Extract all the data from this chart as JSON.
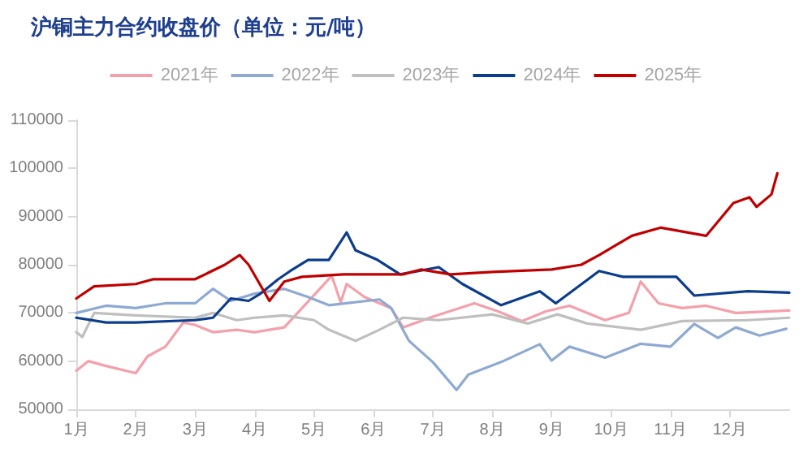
{
  "chart_data": {
    "type": "line",
    "title": "沪铜主力合约收盘价（单位：元/吨）",
    "xlim": [
      1,
      13
    ],
    "xticks": [
      {
        "value": 1,
        "label": "1月"
      },
      {
        "value": 2,
        "label": "2月"
      },
      {
        "value": 3,
        "label": "3月"
      },
      {
        "value": 4,
        "label": "4月"
      },
      {
        "value": 5,
        "label": "5月"
      },
      {
        "value": 6,
        "label": "6月"
      },
      {
        "value": 7,
        "label": "7月"
      },
      {
        "value": 8,
        "label": "8月"
      },
      {
        "value": 9,
        "label": "9月"
      },
      {
        "value": 10,
        "label": "10月"
      },
      {
        "value": 11,
        "label": "11月"
      },
      {
        "value": 12,
        "label": "12月"
      }
    ],
    "ylim": [
      50000,
      110000
    ],
    "yticks": [
      50000,
      60000,
      70000,
      80000,
      90000,
      100000,
      110000
    ],
    "grid": false,
    "legend": "top",
    "marker": "none",
    "line_style": "solid",
    "series": [
      {
        "name": "2021年",
        "color": "#f4a0aa",
        "x": [
          1,
          1.2,
          1.5,
          2,
          2.2,
          2.5,
          2.8,
          3,
          3.3,
          3.7,
          4,
          4.5,
          4.8,
          5.3,
          5.45,
          5.55,
          5.85,
          6.3,
          6.5,
          7,
          7.7,
          8.1,
          8.5,
          8.9,
          9.3,
          9.9,
          10.3,
          10.5,
          10.8,
          11.2,
          11.6,
          12.1,
          13
        ],
        "values": [
          58000,
          60000,
          59000,
          57500,
          61000,
          63000,
          68000,
          67500,
          66000,
          66500,
          66000,
          67000,
          71000,
          77700,
          72200,
          76000,
          73300,
          71000,
          67000,
          69200,
          72000,
          70300,
          68300,
          70300,
          71500,
          68500,
          70000,
          76500,
          72000,
          71000,
          71500,
          70000,
          70500
        ]
      },
      {
        "name": "2022年",
        "color": "#8ea9d2",
        "x": [
          1,
          1.5,
          2,
          2.5,
          3,
          3.3,
          3.6,
          4,
          4.5,
          4.9,
          5.25,
          6.1,
          6.3,
          6.6,
          7,
          7.4,
          7.6,
          8.15,
          8.8,
          9,
          9.3,
          9.9,
          10.5,
          11,
          11.4,
          11.8,
          12.1,
          12.5,
          12.95
        ],
        "values": [
          70000,
          71500,
          71000,
          72000,
          72000,
          75000,
          72500,
          74000,
          75000,
          73300,
          71600,
          72800,
          71000,
          64200,
          59800,
          54000,
          57200,
          59800,
          63500,
          60100,
          63000,
          60700,
          63600,
          63000,
          67700,
          64800,
          67000,
          65300,
          66700
        ]
      },
      {
        "name": "2023年",
        "color": "#bfbfbf",
        "x": [
          1,
          1.1,
          1.3,
          2,
          3,
          3.3,
          3.7,
          4,
          4.5,
          5,
          5.25,
          5.7,
          6.1,
          6.5,
          7.1,
          8,
          8.6,
          9.1,
          9.6,
          10.5,
          11.2,
          12.3,
          13
        ],
        "values": [
          66000,
          65000,
          70000,
          69500,
          69000,
          70000,
          68500,
          69000,
          69500,
          68500,
          66500,
          64200,
          66500,
          69000,
          68500,
          69700,
          67800,
          69700,
          67800,
          66500,
          68300,
          68500,
          69000
        ]
      },
      {
        "name": "2024年",
        "color": "#0b3d8c",
        "x": [
          1,
          1.5,
          2,
          3,
          3.3,
          3.6,
          3.9,
          4.1,
          4.4,
          4.6,
          4.9,
          5.25,
          5.55,
          5.7,
          6.07,
          6.45,
          7.1,
          7.5,
          8.15,
          8.8,
          9.07,
          9.8,
          10.2,
          11.1,
          11.4,
          12.3,
          13
        ],
        "values": [
          69000,
          68000,
          68000,
          68500,
          69000,
          73000,
          72500,
          74000,
          77000,
          78700,
          81000,
          81000,
          86700,
          83000,
          81000,
          78000,
          79500,
          76000,
          71600,
          74500,
          72000,
          78700,
          77500,
          77500,
          73600,
          74500,
          74200
        ]
      },
      {
        "name": "2025年",
        "color": "#c00000",
        "x": [
          1,
          1.3,
          2,
          2.3,
          3,
          3.5,
          3.75,
          3.9,
          4.25,
          4.5,
          4.8,
          5.5,
          6.5,
          6.8,
          7.3,
          8,
          9,
          9.5,
          9.8,
          10.35,
          10.84,
          11.6,
          12.06,
          12.33,
          12.45,
          12.7,
          12.8
        ],
        "values": [
          73000,
          75500,
          76000,
          77000,
          77000,
          80000,
          82000,
          80000,
          72500,
          76500,
          77500,
          78000,
          78000,
          79000,
          78000,
          78500,
          79000,
          80000,
          82000,
          86000,
          87700,
          86000,
          92800,
          94000,
          92000,
          94600,
          99000
        ]
      }
    ]
  }
}
